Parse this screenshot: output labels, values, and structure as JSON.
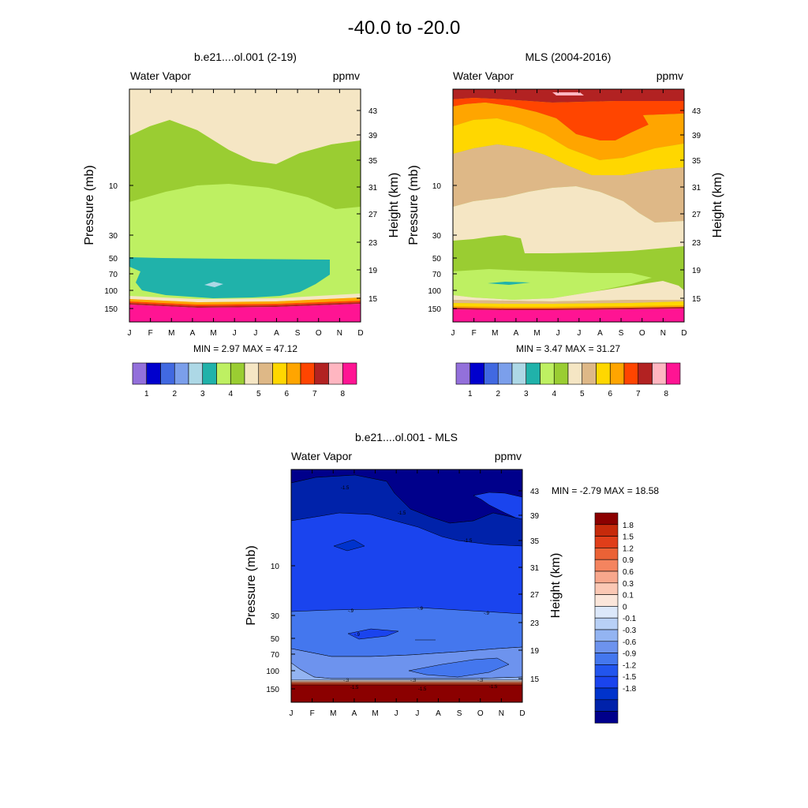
{
  "page_title": "-40.0 to -20.0",
  "colors": {
    "abs": [
      "#9370DB",
      "#0000CD",
      "#4169E1",
      "#7B9FEB",
      "#ADD8E6",
      "#20B2AA",
      "#BEF062",
      "#9ACD32",
      "#F5E6C4",
      "#DEB887",
      "#FFD700",
      "#FFA500",
      "#FF4500",
      "#B22222",
      "#FFB6C1",
      "#FF1493"
    ],
    "diff": [
      "#00008B",
      "#0022AA",
      "#0033CC",
      "#1A44EE",
      "#2255EE",
      "#4477EE",
      "#6D93EE",
      "#93B4F2",
      "#B8D0F6",
      "#DCE8FA",
      "#FBE6DA",
      "#FBC8B4",
      "#F8A78C",
      "#F4845F",
      "#EB6236",
      "#E03E1A",
      "#C62A0B",
      "#8B0000"
    ]
  },
  "chart_data": [
    {
      "type": "contour",
      "id": "model",
      "title": "b.e21....ol.001 (2-19)",
      "left_label": "Water Vapor",
      "right_label": "ppmv",
      "ylabel": "Pressure (mb)",
      "ylabel_right": "Height (km)",
      "x_ticks": [
        "J",
        "F",
        "M",
        "A",
        "M",
        "J",
        "J",
        "A",
        "S",
        "O",
        "N",
        "D"
      ],
      "pressure_ticks": [
        "10",
        "30",
        "50",
        "70",
        "100",
        "150"
      ],
      "height_ticks": [
        "43",
        "39",
        "35",
        "31",
        "27",
        "23",
        "19",
        "15"
      ],
      "stats": "MIN =   2.97  MAX =  47.12",
      "colorbar_labels": [
        "1",
        "2",
        "3",
        "4",
        "5",
        "6",
        "7",
        "8"
      ]
    },
    {
      "type": "contour",
      "id": "obs",
      "title": "MLS (2004-2016)",
      "left_label": "Water Vapor",
      "right_label": "ppmv",
      "ylabel": "Pressure (mb)",
      "ylabel_right": "Height (km)",
      "x_ticks": [
        "J",
        "F",
        "M",
        "A",
        "M",
        "J",
        "J",
        "A",
        "S",
        "O",
        "N",
        "D"
      ],
      "pressure_ticks": [
        "10",
        "30",
        "50",
        "70",
        "100",
        "150"
      ],
      "height_ticks": [
        "43",
        "39",
        "35",
        "31",
        "27",
        "23",
        "19",
        "15"
      ],
      "stats": "MIN =   3.47  MAX =  31.27",
      "colorbar_labels": [
        "1",
        "2",
        "3",
        "4",
        "5",
        "6",
        "7",
        "8"
      ]
    },
    {
      "type": "contour",
      "id": "diff",
      "title": "b.e21....ol.001 - MLS",
      "left_label": "Water Vapor",
      "right_label": "ppmv",
      "ylabel": "Pressure (mb)",
      "ylabel_right": "Height (km)",
      "x_ticks": [
        "J",
        "F",
        "M",
        "A",
        "M",
        "J",
        "J",
        "A",
        "S",
        "O",
        "N",
        "D"
      ],
      "pressure_ticks": [
        "10",
        "30",
        "50",
        "70",
        "100",
        "150"
      ],
      "height_ticks": [
        "43",
        "39",
        "35",
        "31",
        "27",
        "23",
        "19",
        "15"
      ],
      "stats": "MIN =  -2.79  MAX =  18.58",
      "colorbar_labels": [
        "1.8",
        "1.5",
        "1.2",
        "0.9",
        "0.6",
        "0.3",
        "0.1",
        "0",
        "-0.1",
        "-0.3",
        "-0.6",
        "-0.9",
        "-1.2",
        "-1.5",
        "-1.8"
      ],
      "contour_labels": [
        "-1.5",
        "-1.5",
        "-1.5",
        "-.9",
        "-.9",
        "-.9",
        "-.9",
        "-.3",
        "-.3",
        "-.3",
        "-1.5",
        "-1.5",
        "-1.5"
      ]
    }
  ]
}
